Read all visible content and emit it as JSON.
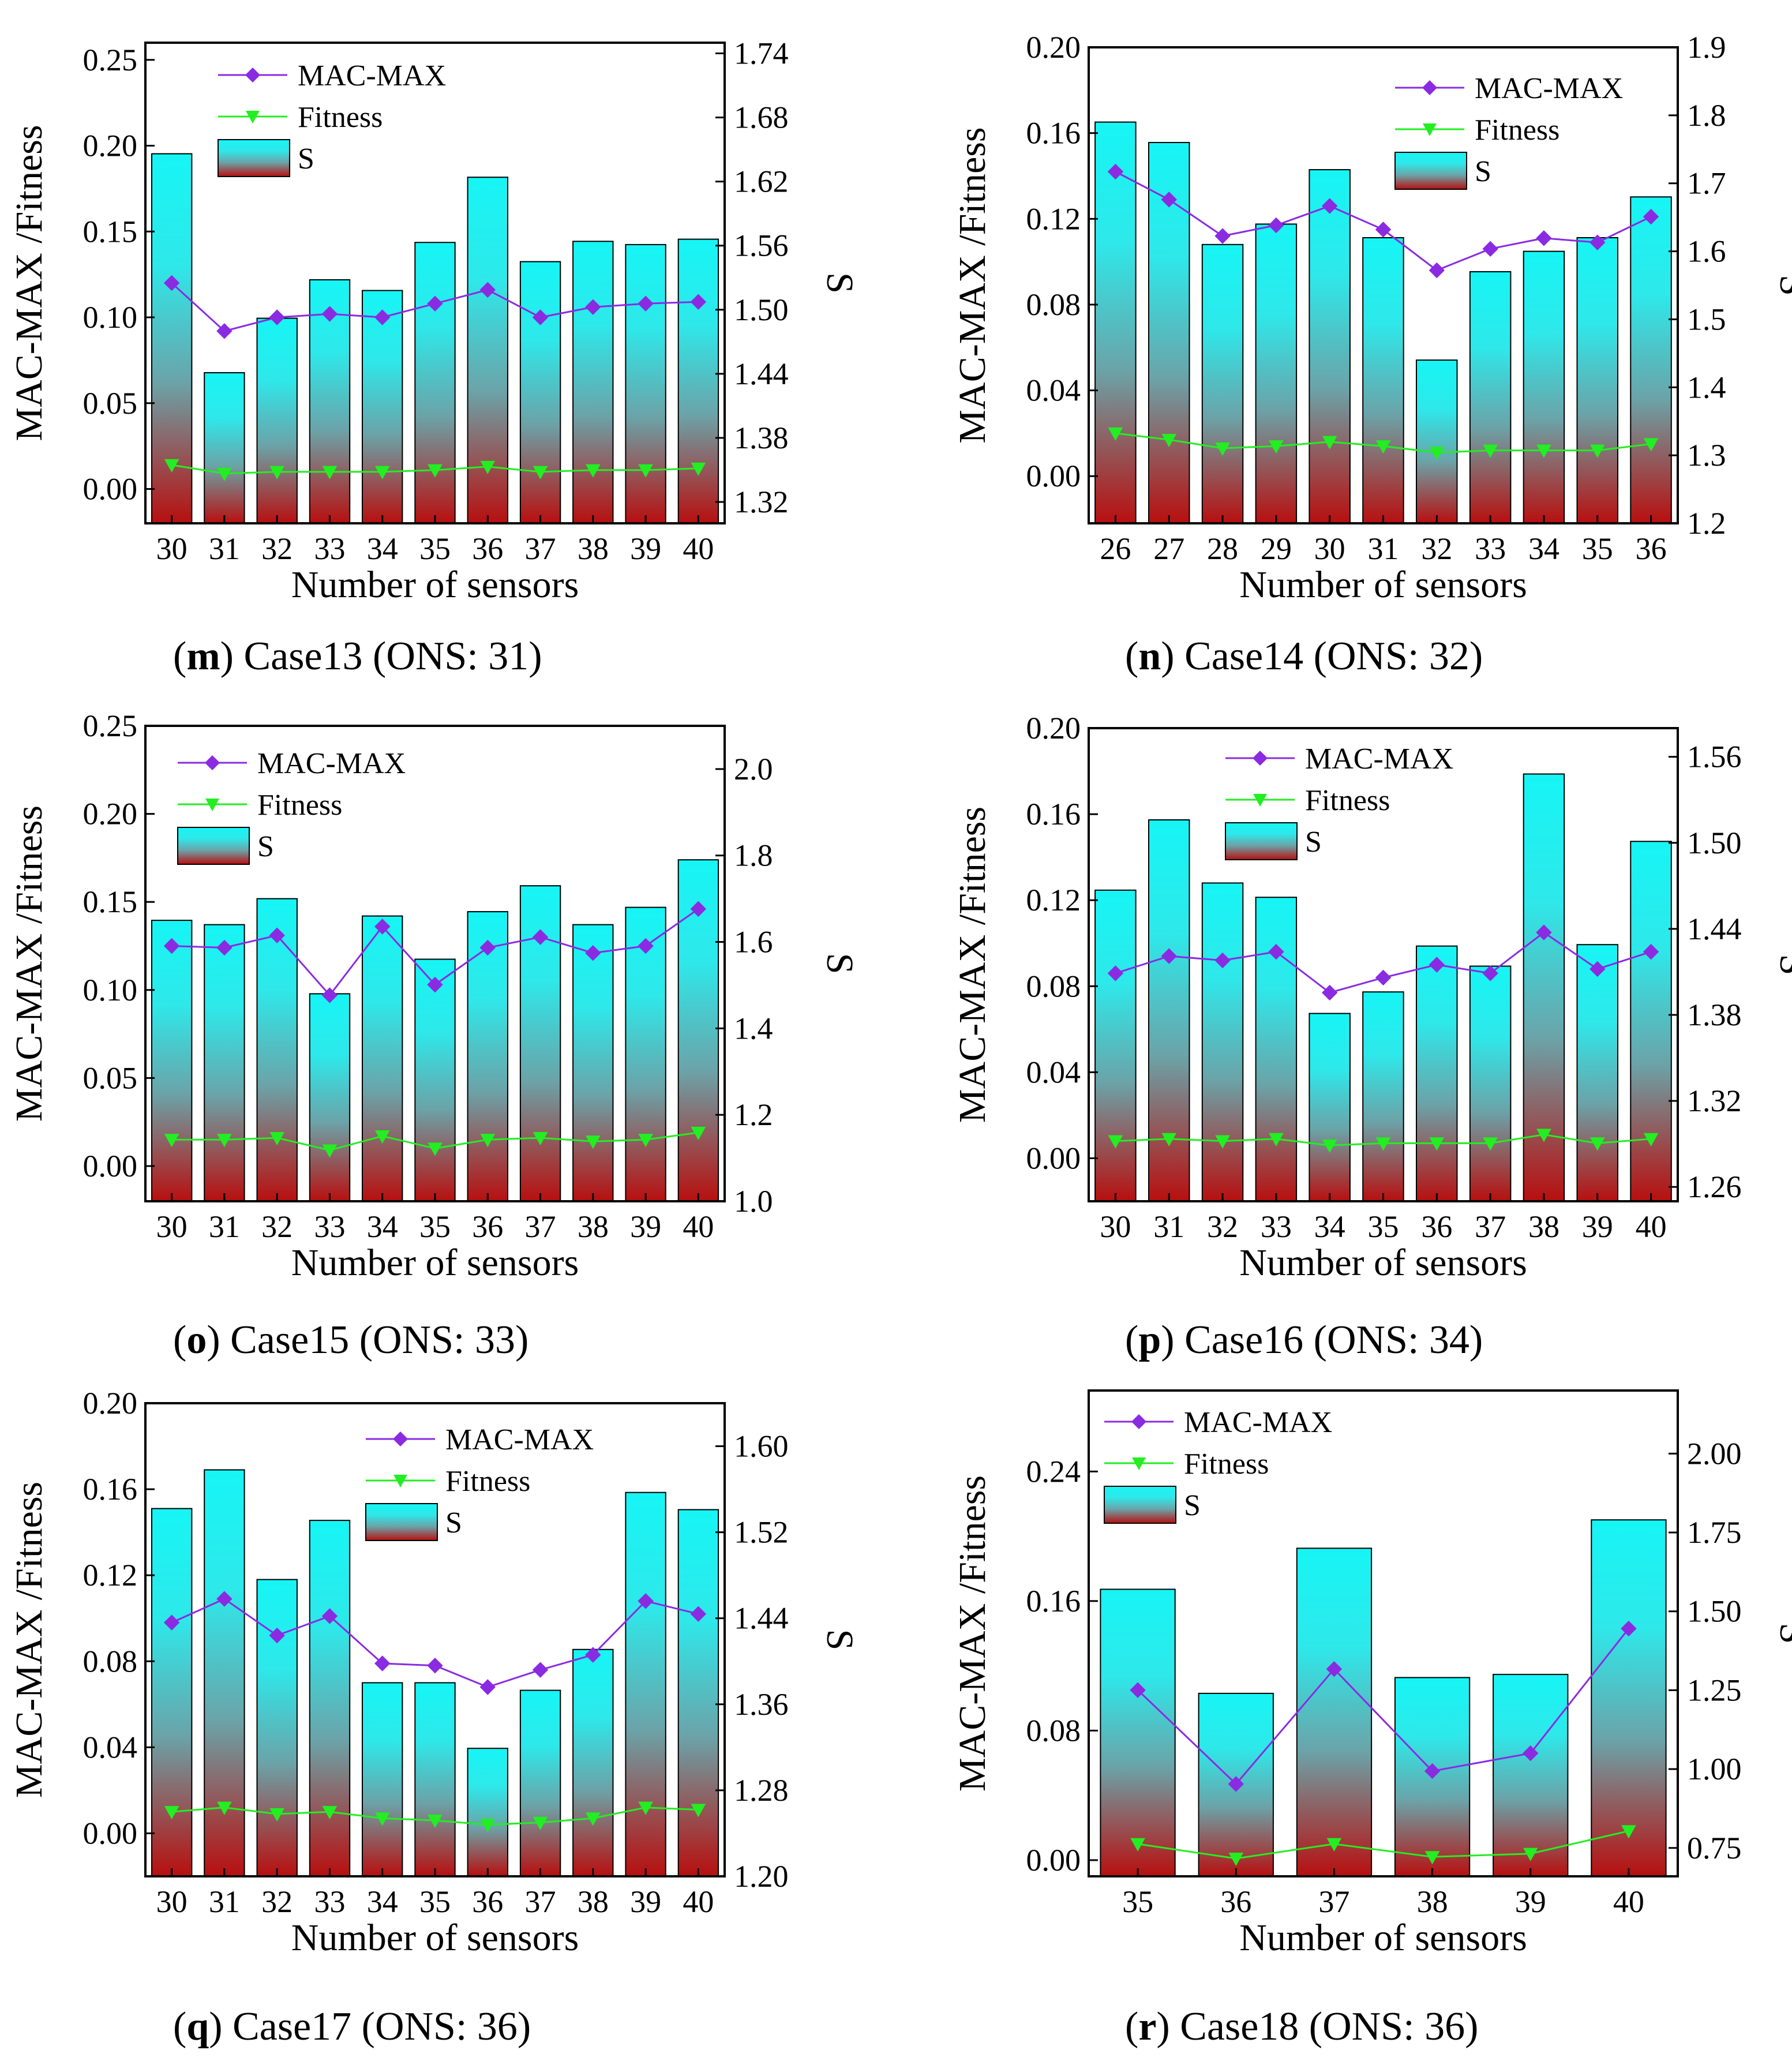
{
  "figure": {
    "panels": [
      {
        "letter": "m",
        "caption_rest": " Case13 (ONS: 31)"
      },
      {
        "letter": "n",
        "caption_rest": " Case14 (ONS: 32)"
      },
      {
        "letter": "o",
        "caption_rest": " Case15 (ONS: 33)"
      },
      {
        "letter": "p",
        "caption_rest": " Case16 (ONS: 34)"
      },
      {
        "letter": "q",
        "caption_rest": " Case17 (ONS: 36)"
      },
      {
        "letter": "r",
        "caption_rest": " Case18 (ONS: 36)"
      }
    ]
  },
  "colors": {
    "bar_top": "#17f5f5",
    "bar_mid": "#6ba3a8",
    "bar_bottom": "#b80f0f",
    "mac_max": "#8a2be2",
    "fitness": "#22ee22"
  },
  "chart_data": [
    {
      "type": "bar+line",
      "title": "(m) Case13 (ONS: 31)",
      "xlabel": "Number of sensors",
      "ylabel_left": "MAC-MAX /Fitness",
      "ylabel_right": "S",
      "legend": [
        "MAC-MAX",
        "Fitness",
        "S"
      ],
      "legend_position": "top-center",
      "categories": [
        "30",
        "31",
        "32",
        "33",
        "34",
        "35",
        "36",
        "37",
        "38",
        "39",
        "40"
      ],
      "left_ylim": [
        -0.02,
        0.26
      ],
      "left_ticks": [
        "0.00",
        "0.05",
        "0.10",
        "0.15",
        "0.20",
        "0.25"
      ],
      "right_ylim": [
        1.3,
        1.75
      ],
      "right_ticks": [
        "1.32",
        "1.38",
        "1.44",
        "1.50",
        "1.56",
        "1.62",
        "1.68",
        "1.74"
      ],
      "series": [
        {
          "name": "S",
          "axis": "right",
          "kind": "bar",
          "values": [
            1.646,
            1.441,
            1.492,
            1.528,
            1.518,
            1.563,
            1.624,
            1.545,
            1.564,
            1.561,
            1.566
          ]
        },
        {
          "name": "MAC-MAX",
          "axis": "left",
          "kind": "line",
          "values": [
            0.12,
            0.092,
            0.1,
            0.102,
            0.1,
            0.108,
            0.116,
            0.1,
            0.106,
            0.108,
            0.109
          ]
        },
        {
          "name": "Fitness",
          "axis": "left",
          "kind": "line",
          "values": [
            0.014,
            0.009,
            0.01,
            0.01,
            0.01,
            0.011,
            0.013,
            0.01,
            0.011,
            0.011,
            0.012
          ]
        }
      ]
    },
    {
      "type": "bar+line",
      "title": "(n) Case14 (ONS: 32)",
      "xlabel": "Number of sensors",
      "ylabel_left": "MAC-MAX /Fitness",
      "ylabel_right": "S",
      "legend": [
        "MAC-MAX",
        "Fitness",
        "S"
      ],
      "legend_position": "top-right",
      "categories": [
        "26",
        "27",
        "28",
        "29",
        "30",
        "31",
        "32",
        "33",
        "34",
        "35",
        "36"
      ],
      "left_ylim": [
        -0.022,
        0.2
      ],
      "left_ticks": [
        "0.00",
        "0.04",
        "0.08",
        "0.12",
        "0.16",
        "0.20"
      ],
      "right_ylim": [
        1.2,
        1.9
      ],
      "right_ticks": [
        "1.2",
        "1.3",
        "1.4",
        "1.5",
        "1.6",
        "1.7",
        "1.8",
        "1.9"
      ],
      "series": [
        {
          "name": "S",
          "axis": "right",
          "kind": "bar",
          "values": [
            1.79,
            1.76,
            1.61,
            1.64,
            1.72,
            1.62,
            1.44,
            1.57,
            1.6,
            1.62,
            1.68
          ]
        },
        {
          "name": "MAC-MAX",
          "axis": "left",
          "kind": "line",
          "values": [
            0.142,
            0.129,
            0.112,
            0.117,
            0.126,
            0.115,
            0.096,
            0.106,
            0.111,
            0.109,
            0.121
          ]
        },
        {
          "name": "Fitness",
          "axis": "left",
          "kind": "line",
          "values": [
            0.02,
            0.017,
            0.013,
            0.014,
            0.016,
            0.014,
            0.011,
            0.012,
            0.012,
            0.012,
            0.015
          ]
        }
      ]
    },
    {
      "type": "bar+line",
      "title": "(o) Case15 (ONS: 33)",
      "xlabel": "Number of sensors",
      "ylabel_left": "MAC-MAX /Fitness",
      "ylabel_right": "S",
      "legend": [
        "MAC-MAX",
        "Fitness",
        "S"
      ],
      "legend_position": "top-left",
      "categories": [
        "30",
        "31",
        "32",
        "33",
        "34",
        "35",
        "36",
        "37",
        "38",
        "39",
        "40"
      ],
      "left_ylim": [
        -0.02,
        0.25
      ],
      "left_ticks": [
        "0.00",
        "0.05",
        "0.10",
        "0.15",
        "0.20",
        "0.25"
      ],
      "right_ylim": [
        1.0,
        2.1
      ],
      "right_ticks": [
        "1.0",
        "1.2",
        "1.4",
        "1.6",
        "1.8",
        "2.0"
      ],
      "series": [
        {
          "name": "S",
          "axis": "right",
          "kind": "bar",
          "values": [
            1.65,
            1.64,
            1.7,
            1.48,
            1.66,
            1.56,
            1.67,
            1.73,
            1.64,
            1.68,
            1.79
          ]
        },
        {
          "name": "MAC-MAX",
          "axis": "left",
          "kind": "line",
          "values": [
            0.125,
            0.124,
            0.131,
            0.097,
            0.136,
            0.103,
            0.124,
            0.13,
            0.121,
            0.125,
            0.146
          ]
        },
        {
          "name": "Fitness",
          "axis": "left",
          "kind": "line",
          "values": [
            0.015,
            0.015,
            0.016,
            0.009,
            0.017,
            0.01,
            0.015,
            0.016,
            0.014,
            0.015,
            0.019
          ]
        }
      ]
    },
    {
      "type": "bar+line",
      "title": "(p) Case16 (ONS: 34)",
      "xlabel": "Number of sensors",
      "ylabel_left": "MAC-MAX /Fitness",
      "ylabel_right": "S",
      "legend": [
        "MAC-MAX",
        "Fitness",
        "S"
      ],
      "legend_position": "top-center",
      "categories": [
        "30",
        "31",
        "32",
        "33",
        "34",
        "35",
        "36",
        "37",
        "38",
        "39",
        "40"
      ],
      "left_ylim": [
        -0.02,
        0.2
      ],
      "left_ticks": [
        "0.00",
        "0.04",
        "0.08",
        "0.12",
        "0.16",
        "0.20"
      ],
      "right_ylim": [
        1.25,
        1.58
      ],
      "right_ticks": [
        "1.26",
        "1.32",
        "1.38",
        "1.44",
        "1.50",
        "1.56"
      ],
      "series": [
        {
          "name": "S",
          "axis": "right",
          "kind": "bar",
          "values": [
            1.467,
            1.516,
            1.472,
            1.462,
            1.381,
            1.396,
            1.428,
            1.414,
            1.548,
            1.429,
            1.501
          ]
        },
        {
          "name": "MAC-MAX",
          "axis": "left",
          "kind": "line",
          "values": [
            0.086,
            0.094,
            0.092,
            0.096,
            0.077,
            0.084,
            0.09,
            0.086,
            0.105,
            0.088,
            0.096
          ]
        },
        {
          "name": "Fitness",
          "axis": "left",
          "kind": "line",
          "values": [
            0.008,
            0.009,
            0.008,
            0.009,
            0.006,
            0.007,
            0.007,
            0.007,
            0.011,
            0.007,
            0.009
          ]
        }
      ]
    },
    {
      "type": "bar+line",
      "title": "(q) Case17 (ONS: 36)",
      "xlabel": "Number of sensors",
      "ylabel_left": "MAC-MAX /Fitness",
      "ylabel_right": "S",
      "legend": [
        "MAC-MAX",
        "Fitness",
        "S"
      ],
      "legend_position": "top-right",
      "categories": [
        "30",
        "31",
        "32",
        "33",
        "34",
        "35",
        "36",
        "37",
        "38",
        "39",
        "40"
      ],
      "left_ylim": [
        -0.02,
        0.2
      ],
      "left_ticks": [
        "0.00",
        "0.04",
        "0.08",
        "0.12",
        "0.16",
        "0.20"
      ],
      "right_ylim": [
        1.2,
        1.64
      ],
      "right_ticks": [
        "1.20",
        "1.28",
        "1.36",
        "1.44",
        "1.52",
        "1.60"
      ],
      "series": [
        {
          "name": "S",
          "axis": "right",
          "kind": "bar",
          "values": [
            1.542,
            1.578,
            1.476,
            1.531,
            1.38,
            1.38,
            1.319,
            1.373,
            1.411,
            1.557,
            1.541
          ]
        },
        {
          "name": "MAC-MAX",
          "axis": "left",
          "kind": "line",
          "values": [
            0.098,
            0.109,
            0.092,
            0.101,
            0.079,
            0.078,
            0.068,
            0.076,
            0.083,
            0.108,
            0.102
          ]
        },
        {
          "name": "Fitness",
          "axis": "left",
          "kind": "line",
          "values": [
            0.01,
            0.012,
            0.009,
            0.01,
            0.007,
            0.006,
            0.004,
            0.005,
            0.007,
            0.012,
            0.011
          ]
        }
      ]
    },
    {
      "type": "bar+line",
      "title": "(r) Case18 (ONS: 36)",
      "xlabel": "Number of sensors",
      "ylabel_left": "MAC-MAX /Fitness",
      "ylabel_right": "S",
      "legend": [
        "MAC-MAX",
        "Fitness",
        "S"
      ],
      "legend_position": "top-left",
      "categories": [
        "35",
        "36",
        "37",
        "38",
        "39",
        "40"
      ],
      "left_ylim": [
        -0.01,
        0.29
      ],
      "left_ticks": [
        "0.00",
        "0.08",
        "0.16",
        "0.24"
      ],
      "right_ylim": [
        0.66,
        2.2
      ],
      "right_ticks": [
        "0.75",
        "1.00",
        "1.25",
        "1.50",
        "1.75",
        "2.00"
      ],
      "series": [
        {
          "name": "S",
          "axis": "right",
          "kind": "bar",
          "values": [
            1.57,
            1.24,
            1.7,
            1.29,
            1.3,
            1.79
          ]
        },
        {
          "name": "MAC-MAX",
          "axis": "left",
          "kind": "line",
          "values": [
            0.105,
            0.047,
            0.118,
            0.055,
            0.066,
            0.143
          ]
        },
        {
          "name": "Fitness",
          "axis": "left",
          "kind": "line",
          "values": [
            0.01,
            0.001,
            0.01,
            0.002,
            0.004,
            0.018
          ]
        }
      ]
    }
  ]
}
